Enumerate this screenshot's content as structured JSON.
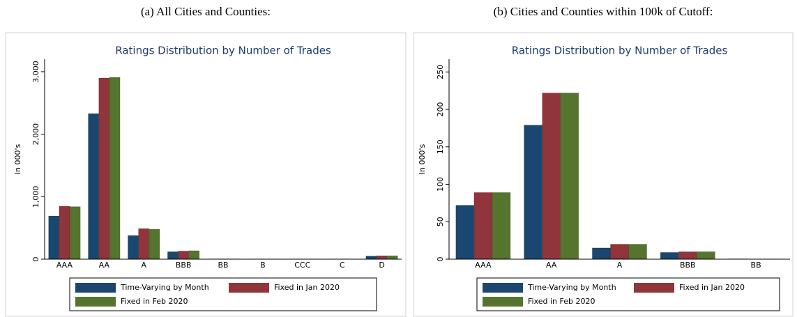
{
  "chart_data": [
    {
      "type": "bar",
      "caption": "(a) All Cities and Counties:",
      "title": "Ratings Distribution by Number of Trades",
      "y_label": "In 000's",
      "categories": [
        "AAA",
        "AA",
        "A",
        "BBB",
        "BB",
        "B",
        "CCC",
        "C",
        "D"
      ],
      "series": [
        {
          "name": "Time-Varying by Month",
          "color": "#1a476f",
          "values": [
            691,
            2330,
            379,
            120,
            5,
            3,
            3,
            3,
            50
          ]
        },
        {
          "name": "Fixed in Jan 2020",
          "color": "#90353b",
          "values": [
            847,
            2899,
            490,
            130,
            5,
            3,
            3,
            3,
            55
          ]
        },
        {
          "name": "Fixed in Feb 2020",
          "color": "#55752f",
          "values": [
            840,
            2910,
            480,
            135,
            5,
            3,
            3,
            3,
            55
          ]
        }
      ],
      "ylim": [
        0,
        3200
      ],
      "yticks": [
        0,
        {
          "value": 1000,
          "label": "1,000"
        },
        {
          "value": 2000,
          "label": "2,000"
        },
        {
          "value": 3000,
          "label": "3,000"
        }
      ]
    },
    {
      "type": "bar",
      "caption": "(b) Cities and Counties within 100k of Cutoff:",
      "title": "Ratings Distribution by Number of Trades",
      "y_label": "In 000's",
      "categories": [
        "AAA",
        "AA",
        "A",
        "BBB",
        "BB"
      ],
      "series": [
        {
          "name": "Time-Varying by Month",
          "color": "#1a476f",
          "values": [
            72,
            179,
            15,
            9,
            0.5
          ]
        },
        {
          "name": "Fixed in Jan 2020",
          "color": "#90353b",
          "values": [
            89,
            222,
            20,
            10,
            0.3
          ]
        },
        {
          "name": "Fixed in Feb 2020",
          "color": "#55752f",
          "values": [
            89,
            222,
            20,
            10,
            0.3
          ]
        }
      ],
      "ylim": [
        0,
        267
      ],
      "yticks": [
        0,
        50,
        100,
        150,
        200,
        250
      ]
    }
  ]
}
